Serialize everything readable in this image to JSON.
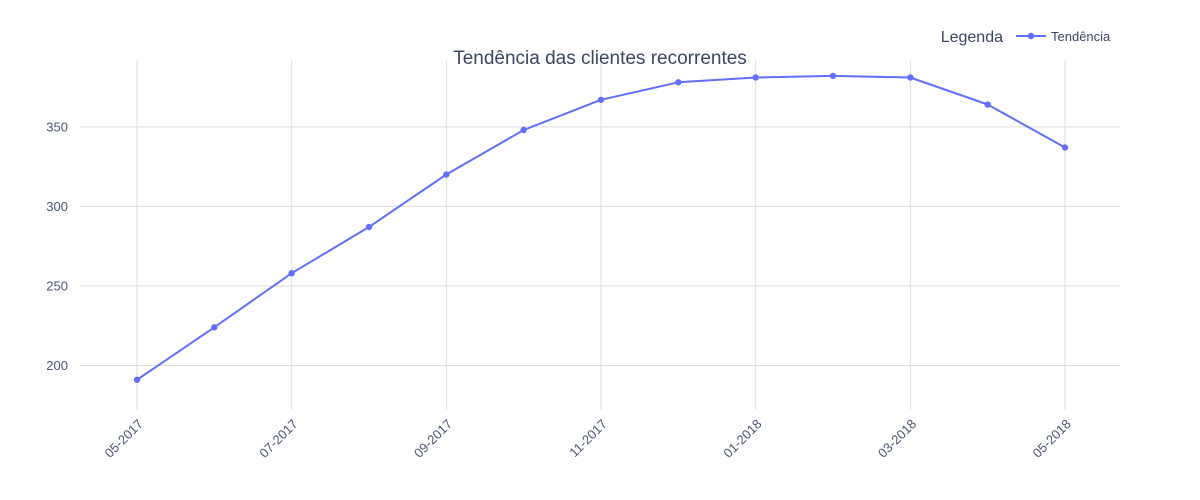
{
  "chart_data": {
    "type": "line",
    "title": "Tendência das clientes recorrentes",
    "xlabel": "",
    "ylabel": "",
    "x": [
      "05-2017",
      "06-2017",
      "07-2017",
      "08-2017",
      "09-2017",
      "10-2017",
      "11-2017",
      "12-2017",
      "01-2018",
      "02-2018",
      "03-2018",
      "04-2018",
      "05-2018"
    ],
    "x_tick_labels": [
      "05-2017",
      "07-2017",
      "09-2017",
      "11-2017",
      "01-2018",
      "03-2018",
      "05-2018"
    ],
    "y_ticks": [
      200,
      250,
      300,
      350
    ],
    "ylim": [
      172,
      392
    ],
    "grid": true,
    "legend": {
      "title": "Legenda",
      "placement": "top-right"
    },
    "series": [
      {
        "name": "Tendência",
        "color": "#636efa",
        "values": [
          191,
          224,
          258,
          287,
          320,
          348,
          367,
          378,
          381,
          382,
          381,
          364,
          337
        ]
      }
    ]
  }
}
